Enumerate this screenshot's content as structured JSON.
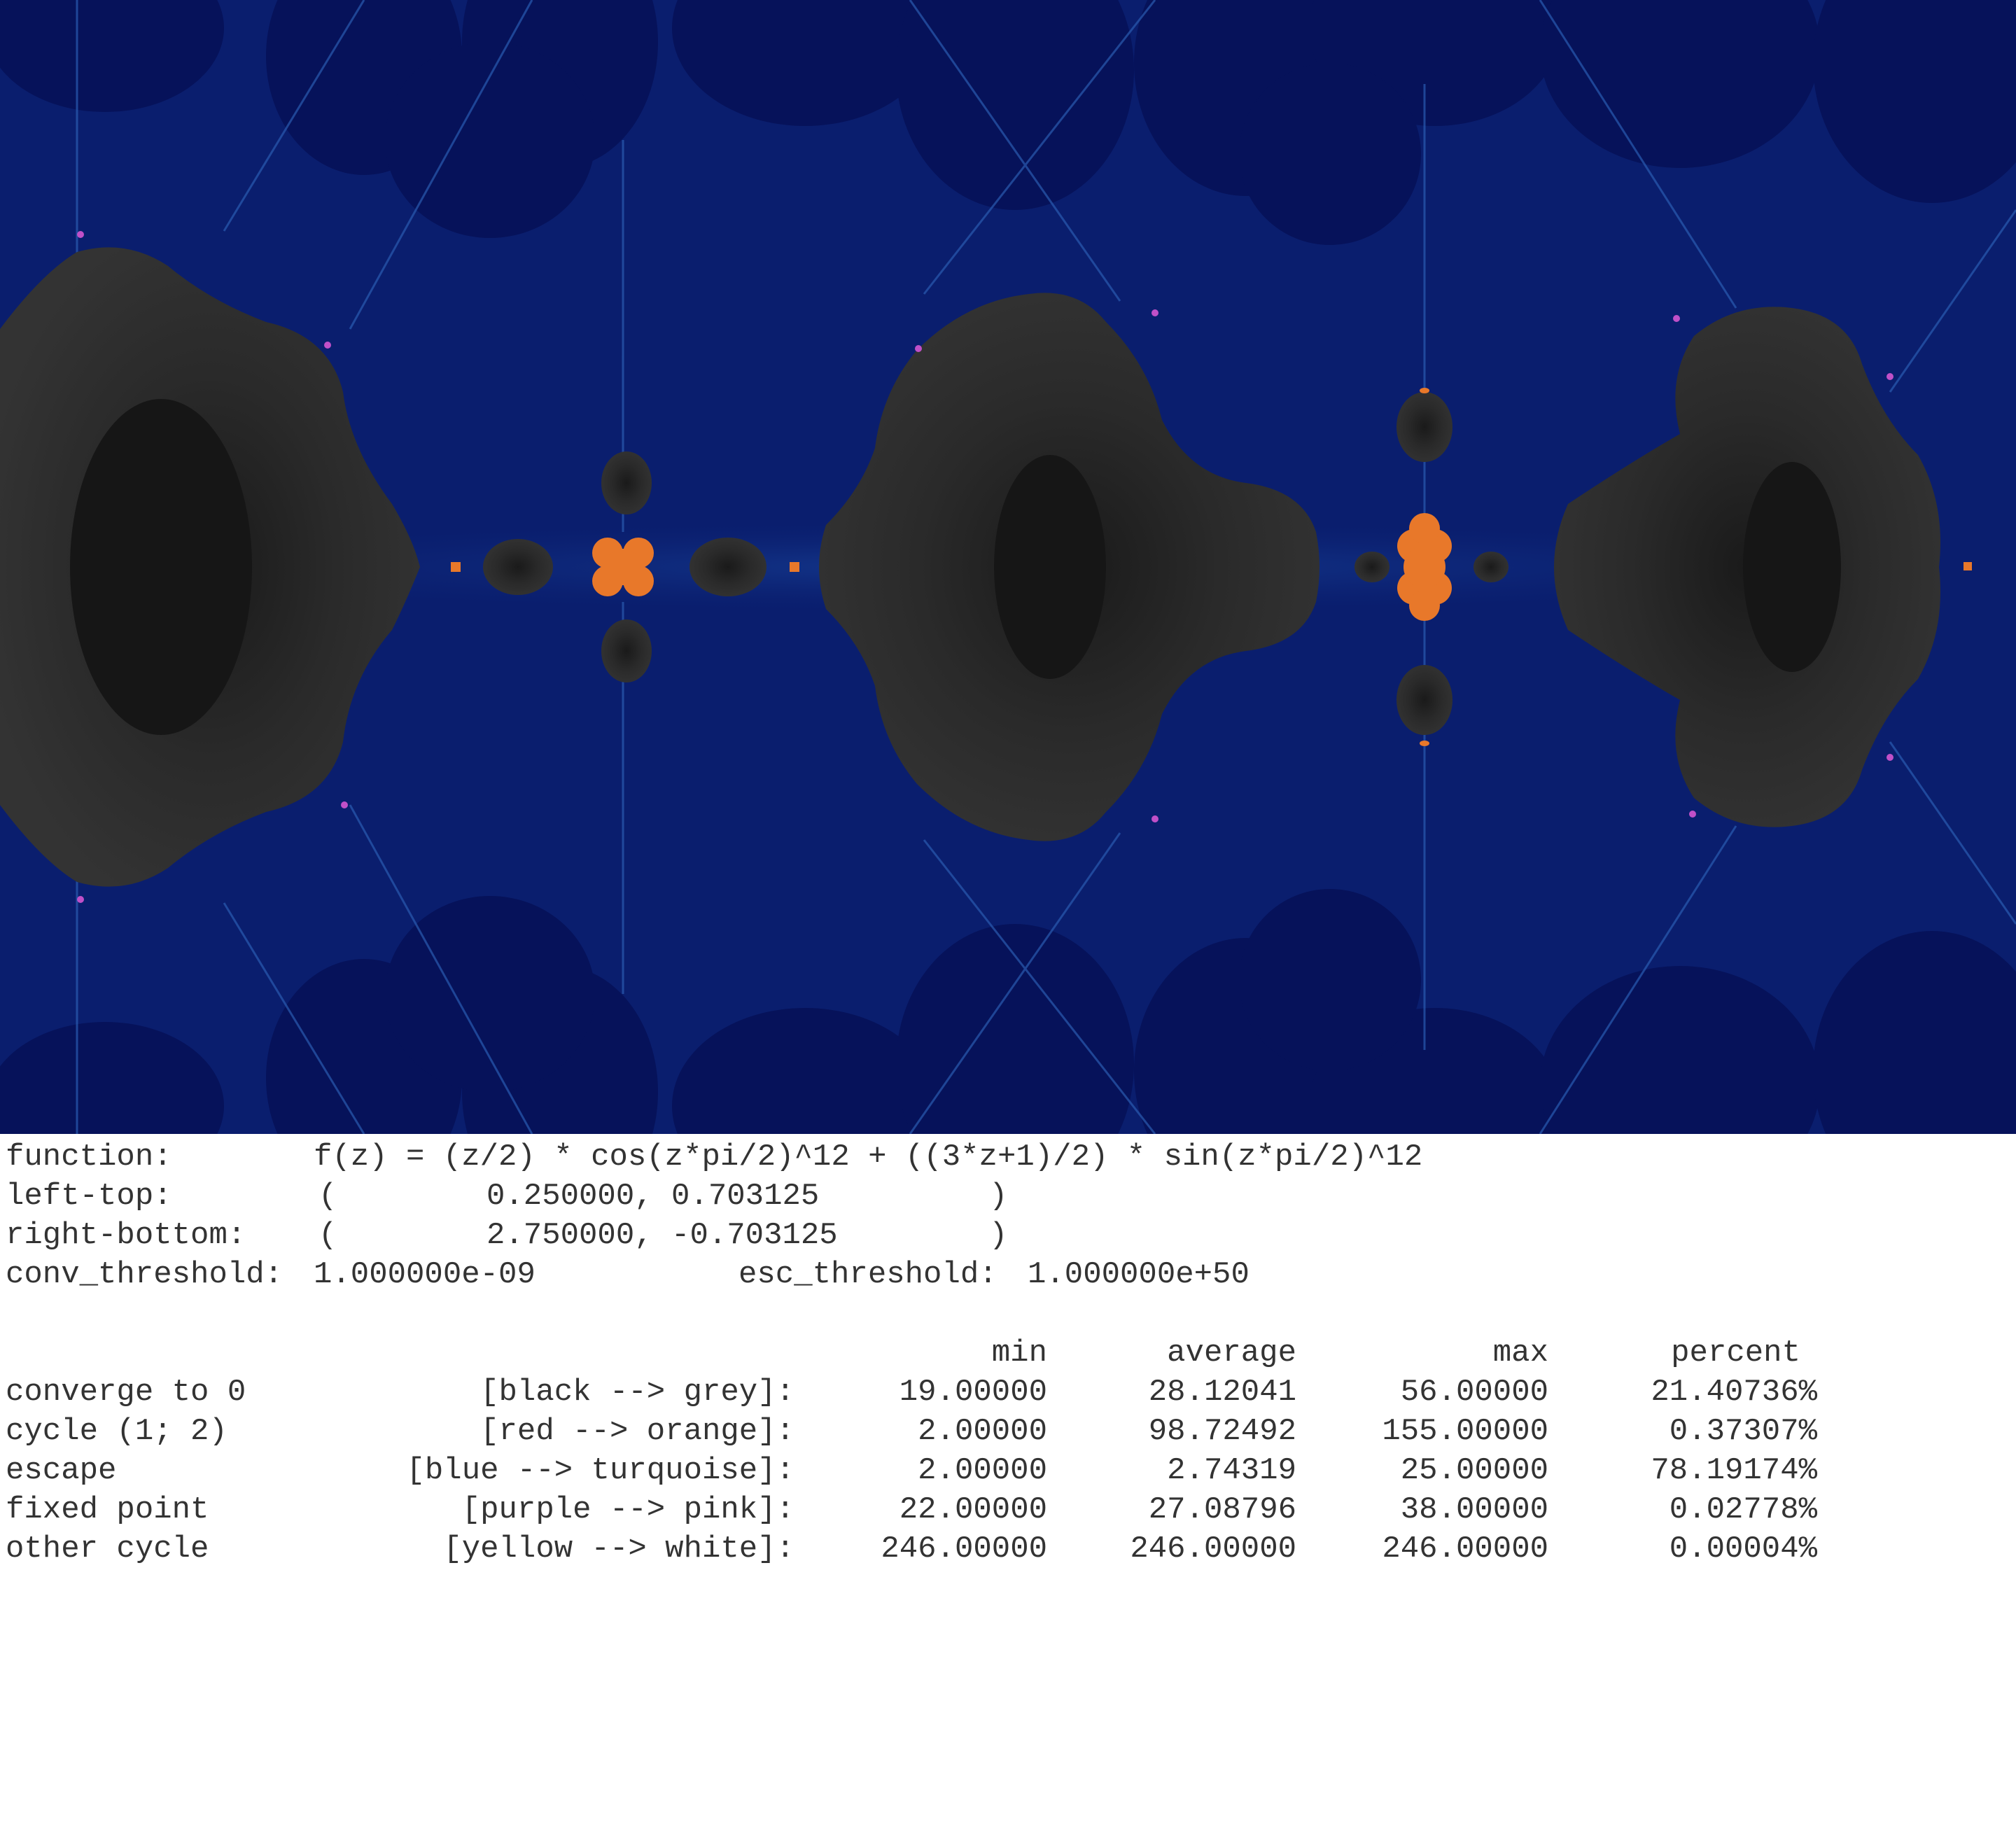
{
  "params": {
    "function": {
      "label": "function:",
      "value": "f(z) = (z/2) * cos(z*pi/2)^12 + ((3*z+1)/2) * sin(z*pi/2)^12"
    },
    "left_top": {
      "label": "left-top:",
      "open": "(",
      "value": "0.250000, 0.703125",
      "close": ")"
    },
    "right_bottom": {
      "label": "right-bottom:",
      "open": "(",
      "value": "2.750000, -0.703125",
      "close": ")"
    },
    "conv_threshold": {
      "label": "conv_threshold:",
      "value": "1.000000e-09"
    },
    "esc_threshold": {
      "label": "esc_threshold:",
      "value": "1.000000e+50"
    }
  },
  "stats": {
    "headers": [
      "min",
      "average",
      "max",
      "percent"
    ],
    "rows": [
      {
        "name": "converge to 0",
        "colors": "[black --> grey]:",
        "min": "19.00000",
        "average": "28.12041",
        "max": "56.00000",
        "percent": "21.40736%"
      },
      {
        "name": "cycle (1; 2)",
        "colors": "[red --> orange]:",
        "min": "2.00000",
        "average": "98.72492",
        "max": "155.00000",
        "percent": "0.37307%"
      },
      {
        "name": "escape",
        "colors": "[blue --> turquoise]:",
        "min": "2.00000",
        "average": "2.74319",
        "max": "25.00000",
        "percent": "78.19174%"
      },
      {
        "name": "fixed point",
        "colors": "[purple --> pink]:",
        "min": "22.00000",
        "average": "27.08796",
        "max": "38.00000",
        "percent": "0.02778%"
      },
      {
        "name": "other cycle",
        "colors": "[yellow --> white]:",
        "min": "246.00000",
        "average": "246.00000",
        "max": "246.00000",
        "percent": "0.00004%"
      }
    ]
  },
  "colors": {
    "escape_blue": "#0a1e6e",
    "deep_blue": "#06125a",
    "converge_dark": "#262626",
    "converge_grey": "#3a3a3a",
    "cycle_orange": "#e8782a",
    "fixed_pink": "#c050c8",
    "text": "#333333"
  }
}
